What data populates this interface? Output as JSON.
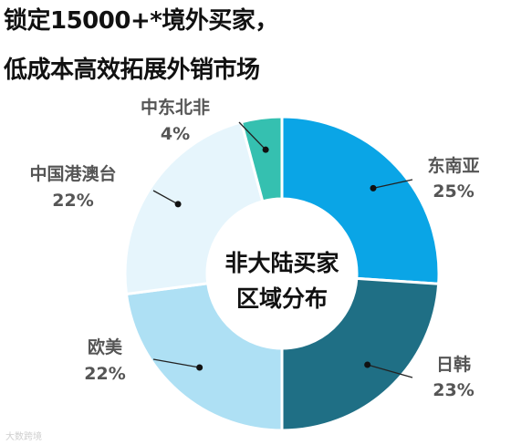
{
  "headline": {
    "line1": "锁定15000+*境外买家，",
    "line2": "低成本高效拓展外销市场"
  },
  "watermark": "大数跨境",
  "chart_data": {
    "type": "pie",
    "donut": true,
    "center_label": [
      "非大陆买家",
      "区域分布"
    ],
    "categories": [
      "东南亚",
      "日韩",
      "欧美",
      "中国港澳台",
      "中东北非"
    ],
    "values": [
      25,
      23,
      22,
      22,
      4
    ],
    "value_labels": [
      "25%",
      "23%",
      "22%",
      "22%",
      "4%"
    ],
    "colors": [
      "#0aa5e6",
      "#1f6f85",
      "#aee0f4",
      "#e6f5fc",
      "#35c0b0"
    ],
    "label_color": "#555555",
    "start_angle_deg": 0,
    "direction": "clockwise",
    "legend": "none"
  }
}
